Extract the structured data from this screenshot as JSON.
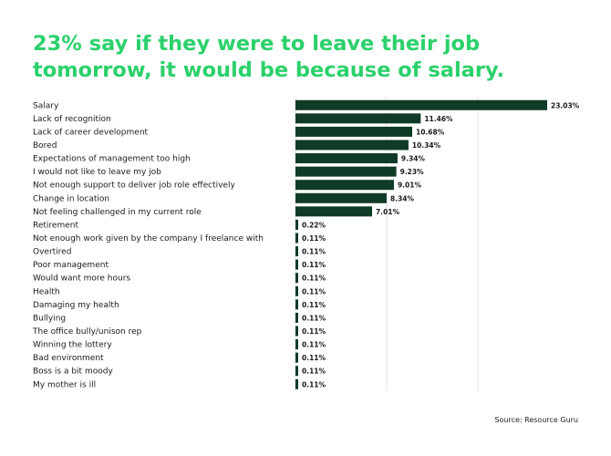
{
  "header": {
    "title_line1": "23% say if they were to leave their job",
    "title_line2": "tomorrow, it would be because of salary."
  },
  "footer": {
    "source": "Source: Resource Guru"
  },
  "colors": {
    "title": "#2bd16b",
    "bar": "#0f3b27",
    "grid": "#d9d9d9",
    "text": "#1a1a1a"
  },
  "chart_data": {
    "type": "bar",
    "orientation": "horizontal",
    "grid": true,
    "categories": [
      "Salary",
      "Lack of recognition",
      "Lack of career development",
      "Bored",
      "Expectations of management too high",
      "I would not like to leave my job",
      "Not enough support to deliver job role effectively",
      "Change in location",
      "Not feeling challenged in my current role",
      "Retirement",
      "Not enough work given by the company I freelance with",
      "Overtired",
      "Poor management",
      "Would want more hours",
      "Health",
      "Damaging my health",
      "Bullying",
      "The office bully/unison rep",
      "Winning the lottery",
      "Bad environment",
      "Boss is a bit moody",
      "My mother is ill"
    ],
    "values": [
      23.03,
      11.46,
      10.68,
      10.34,
      9.34,
      9.23,
      9.01,
      8.34,
      7.01,
      0.22,
      0.11,
      0.11,
      0.11,
      0.11,
      0.11,
      0.11,
      0.11,
      0.11,
      0.11,
      0.11,
      0.11,
      0.11
    ],
    "value_labels": [
      "23.03%",
      "11.46%",
      "10.68%",
      "10.34%",
      "9.34%",
      "9.23%",
      "9.01%",
      "8.34%",
      "7.01%",
      "0.22%",
      "0.11%",
      "0.11%",
      "0.11%",
      "0.11%",
      "0.11%",
      "0.11%",
      "0.11%",
      "0.11%",
      "0.11%",
      "0.11%",
      "0.11%",
      "0.11%"
    ],
    "xlim": [
      0,
      23.03
    ]
  }
}
